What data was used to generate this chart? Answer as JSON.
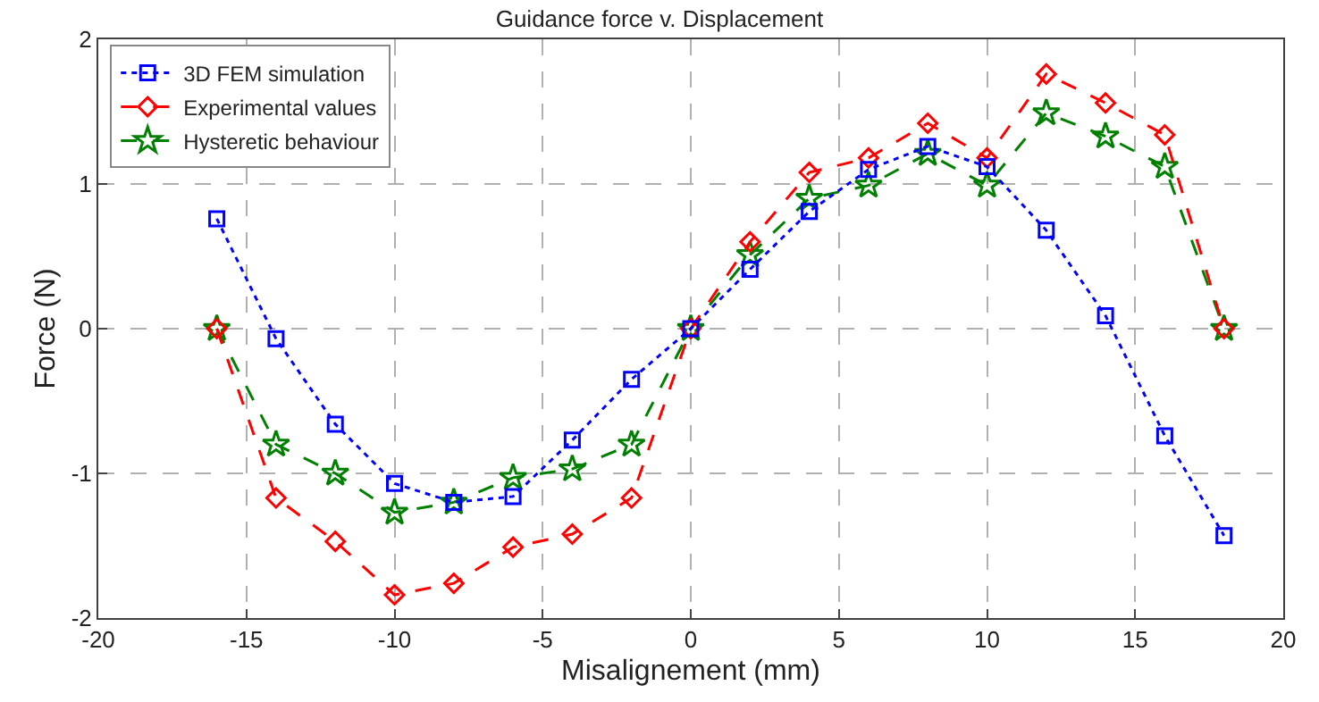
{
  "chart_data": {
    "type": "line",
    "title": "Guidance force v. Displacement",
    "xlabel": "Misalignement (mm)",
    "ylabel": "Force (N)",
    "x": [
      -16,
      -14,
      -12,
      -10,
      -8,
      -6,
      -4,
      -2,
      0,
      2,
      4,
      6,
      8,
      10,
      12,
      14,
      16,
      18
    ],
    "series": [
      {
        "name": "3D FEM simulation",
        "color": "#0000ff",
        "marker": "square",
        "line_style": "dotted",
        "values": [
          0.76,
          -0.07,
          -0.66,
          -1.07,
          -1.2,
          -1.16,
          -0.77,
          -0.35,
          0,
          0.41,
          0.81,
          1.1,
          1.26,
          1.12,
          0.68,
          0.09,
          -0.74,
          -1.43
        ]
      },
      {
        "name": "Experimental values",
        "color": "#ff0000",
        "marker": "diamond",
        "line_style": "dashed",
        "values": [
          0,
          -1.17,
          -1.47,
          -1.84,
          -1.76,
          -1.51,
          -1.42,
          -1.17,
          0,
          0.6,
          1.08,
          1.18,
          1.42,
          1.18,
          1.76,
          1.56,
          1.34,
          0
        ]
      },
      {
        "name": "Hysteretic behaviour",
        "color": "#008000",
        "marker": "star",
        "line_style": "dashed",
        "values": [
          0,
          -0.8,
          -1.0,
          -1.27,
          -1.2,
          -1.03,
          -0.97,
          -0.8,
          0,
          0.51,
          0.9,
          0.99,
          1.21,
          0.99,
          1.49,
          1.33,
          1.12,
          0
        ]
      }
    ],
    "xlim": [
      -20,
      20
    ],
    "xticks": [
      -20,
      -15,
      -10,
      -5,
      0,
      5,
      10,
      15,
      20
    ],
    "ylim": [
      -2,
      2
    ],
    "yticks": [
      -2,
      -1,
      0,
      1,
      2
    ],
    "grid": true,
    "legend": "top left"
  }
}
